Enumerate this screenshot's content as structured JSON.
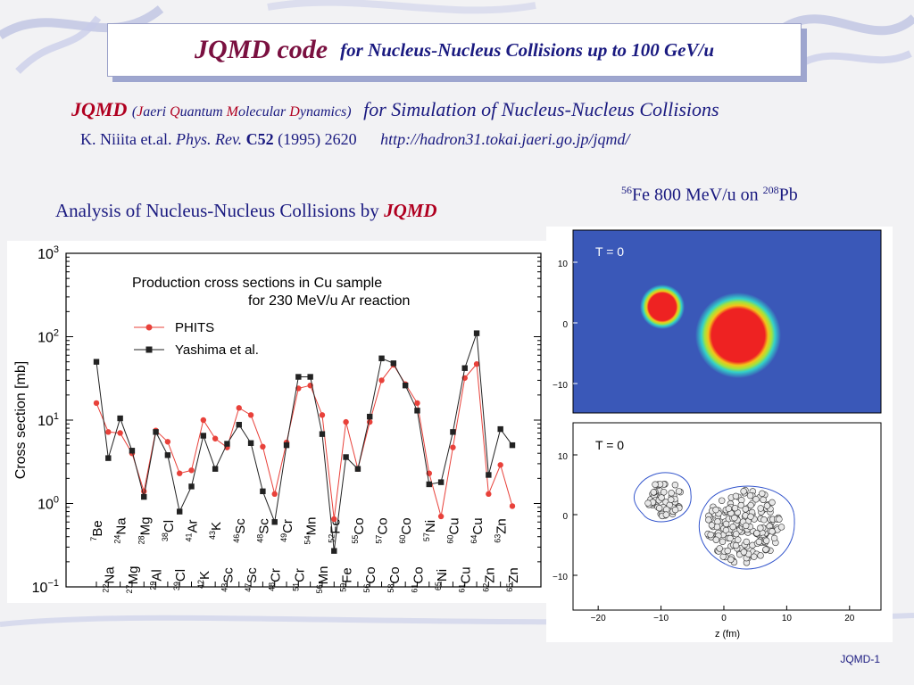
{
  "header": {
    "title_main": "JQMD code",
    "title_sub": "for Nucleus-Nucleus Collisions up to 100 GeV/u"
  },
  "intro": {
    "jqmd": "JQMD",
    "expansion": [
      {
        "cap": "J",
        "rest": "aeri "
      },
      {
        "cap": "Q",
        "rest": "uantum "
      },
      {
        "cap": "M",
        "rest": "olecular "
      },
      {
        "cap": "D",
        "rest": "ynamics"
      }
    ],
    "purpose_for": "for",
    "purpose_text": "Simulation of Nucleus-Nucleus Collisions",
    "ref_authors": "K. Niiita et.al.",
    "ref_journal": "Phys. Rev.",
    "ref_volume": "C52",
    "ref_rest": "(1995) 2620",
    "url": "http://hadron31.tokai.jaeri.go.jp/jqmd/"
  },
  "analysis_label": {
    "text": "Analysis of Nucleus-Nucleus Collisions by ",
    "jqmd": "JQMD"
  },
  "sim_label": {
    "a1": "56",
    "e1": "Fe 800 MeV/u on ",
    "a2": "208",
    "e2": "Pb"
  },
  "footer": {
    "slide_id": "JQMD-1"
  },
  "chart_data": [
    {
      "type": "line",
      "title": "Production cross sections in Cu sample",
      "subtitle": "for 230 MeV/u Ar reaction",
      "ylabel": "Cross section [mb]",
      "yscale": "log",
      "ylim": [
        0.1,
        1000
      ],
      "yticks": [
        {
          "b": "10",
          "e": "−1"
        },
        {
          "b": "10",
          "e": "0"
        },
        {
          "b": "10",
          "e": "1"
        },
        {
          "b": "10",
          "e": "2"
        },
        {
          "b": "10",
          "e": "3"
        }
      ],
      "legend_position": "top-left",
      "categories": [
        {
          "a": "7",
          "e": "Be"
        },
        {
          "a": "22",
          "e": "Na"
        },
        {
          "a": "24",
          "e": "Na"
        },
        {
          "a": "27",
          "e": "Mg"
        },
        {
          "a": "28",
          "e": "Mg"
        },
        {
          "a": "29",
          "e": "Al"
        },
        {
          "a": "38",
          "e": "Cl"
        },
        {
          "a": "39",
          "e": "Cl"
        },
        {
          "a": "41",
          "e": "Ar"
        },
        {
          "a": "42",
          "e": "K"
        },
        {
          "a": "43",
          "e": "K"
        },
        {
          "a": "43",
          "e": "Sc"
        },
        {
          "a": "46",
          "e": "Sc"
        },
        {
          "a": "47",
          "e": "Sc"
        },
        {
          "a": "48",
          "e": "Sc"
        },
        {
          "a": "48",
          "e": "Cr"
        },
        {
          "a": "49",
          "e": "Cr"
        },
        {
          "a": "51",
          "e": "Cr"
        },
        {
          "a": "54",
          "e": "Mn"
        },
        {
          "a": "56",
          "e": "Mn"
        },
        {
          "a": "52",
          "e": "Fe"
        },
        {
          "a": "59",
          "e": "Fe"
        },
        {
          "a": "55",
          "e": "Co"
        },
        {
          "a": "56",
          "e": "Co"
        },
        {
          "a": "57",
          "e": "Co"
        },
        {
          "a": "58",
          "e": "Co"
        },
        {
          "a": "60",
          "e": "Co"
        },
        {
          "a": "61",
          "e": "Co"
        },
        {
          "a": "57",
          "e": "Ni"
        },
        {
          "a": "65",
          "e": "Ni"
        },
        {
          "a": "60",
          "e": "Cu"
        },
        {
          "a": "61",
          "e": "Cu"
        },
        {
          "a": "64",
          "e": "Cu"
        },
        {
          "a": "62",
          "e": "Zn"
        },
        {
          "a": "63",
          "e": "Zn"
        },
        {
          "a": "65",
          "e": "Zn"
        }
      ],
      "series": [
        {
          "name": "PHITS",
          "color": "#e8413a",
          "marker": "circle",
          "values": [
            16,
            7.2,
            7.0,
            4.0,
            1.4,
            7.5,
            5.5,
            2.3,
            2.5,
            10,
            6,
            4.7,
            14,
            11.5,
            4.8,
            1.3,
            5.4,
            24,
            26,
            11.5,
            0.65,
            9.5,
            2.6,
            9.5,
            30,
            46,
            27,
            16,
            2.3,
            0.7,
            4.7,
            32,
            47,
            1.3,
            2.9,
            0.93
          ]
        },
        {
          "name": "Yashima et al.",
          "color": "#222222",
          "marker": "square",
          "values": [
            50,
            3.5,
            10.5,
            4.3,
            1.2,
            7.2,
            3.8,
            0.8,
            1.6,
            6.5,
            2.6,
            5.2,
            8.8,
            5.3,
            1.4,
            0.6,
            5,
            33,
            33,
            6.8,
            0.27,
            3.6,
            2.6,
            11,
            55,
            48,
            26,
            13,
            1.7,
            1.8,
            7.2,
            42,
            110,
            2.2,
            7.8,
            5
          ]
        }
      ]
    },
    {
      "type": "heatmap",
      "label": "T =   0",
      "yticks": [
        "10",
        "0",
        "−10"
      ],
      "background": "#3a58b8"
    },
    {
      "type": "scatter",
      "label": "T =   0",
      "xlabel": "z (fm)",
      "xticks": [
        "−20",
        "−10",
        "0",
        "10",
        "20"
      ],
      "yticks": [
        "10",
        "0",
        "−10"
      ],
      "xlim": [
        -24,
        25
      ],
      "ylim": [
        -15,
        17
      ]
    }
  ]
}
